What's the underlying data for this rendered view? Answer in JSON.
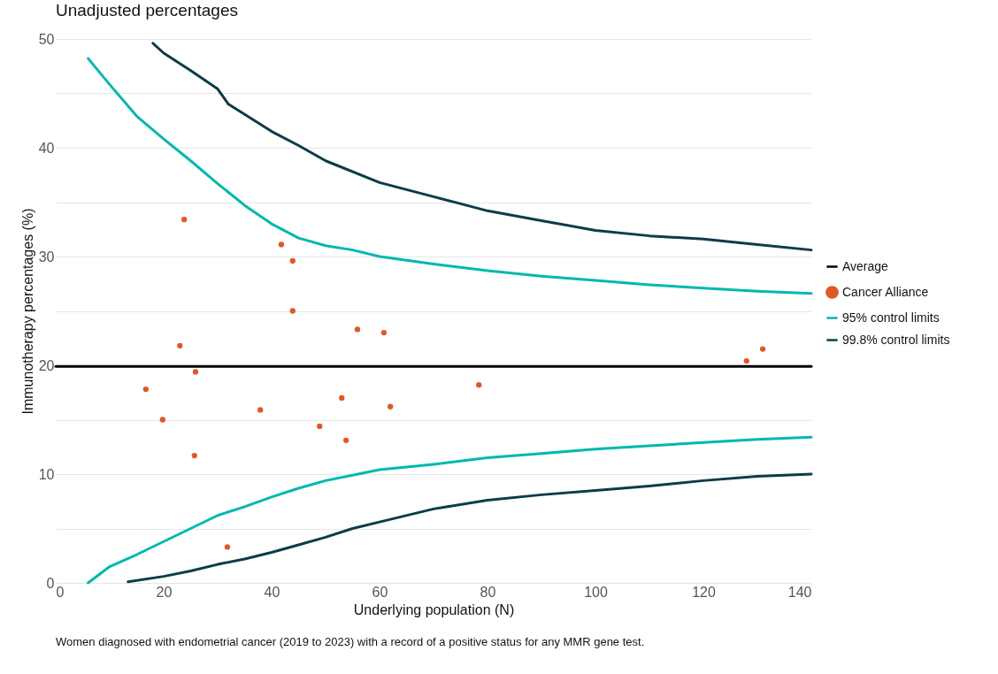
{
  "chart_data": {
    "type": "scatter",
    "title": "Unadjusted percentages",
    "xlabel": "Underlying population (N)",
    "ylabel": "Immunotherapy percentages (%)",
    "xlim": [
      0,
      140
    ],
    "xticks": [
      0,
      20,
      40,
      60,
      80,
      100,
      120,
      140
    ],
    "ylim": [
      0,
      50
    ],
    "yticks": [
      0,
      {
        "value": 5,
        "label": null
      },
      10,
      {
        "value": 15,
        "label": null
      },
      20,
      {
        "value": 25,
        "label": null
      },
      30,
      {
        "value": 35,
        "label": null
      },
      40,
      {
        "value": 45,
        "label": null
      },
      50
    ],
    "grid": "y",
    "legend": "right",
    "annotations": [
      "Women diagnosed with endometrial cancer (2019 to 2023) with a record of a positive status for any MMR gene test."
    ],
    "series": [
      {
        "name": "Average",
        "type": "line",
        "color": "#000000",
        "x": [
          0,
          140
        ],
        "values": [
          19.9,
          19.9
        ]
      },
      {
        "name": "Cancer Alliance",
        "color": "#e0582a",
        "x": [
          23.8,
          41.8,
          43.9,
          43.9,
          55.9,
          60.8,
          23.0,
          25.9,
          16.7,
          53.0,
          78.4,
          62.0,
          37.9,
          19.8,
          48.9,
          53.8,
          25.7,
          31.8,
          128.0,
          131.0
        ],
        "values": [
          33.4,
          31.1,
          29.6,
          25.0,
          23.3,
          23.0,
          21.8,
          19.4,
          17.8,
          17.0,
          18.2,
          16.2,
          15.9,
          15.0,
          14.4,
          13.1,
          11.7,
          3.3,
          20.4,
          21.5
        ]
      },
      {
        "name": "95% control limits",
        "type": "line",
        "color": "#00b8b0",
        "x": [
          6,
          10,
          15,
          20,
          25,
          30,
          35,
          40,
          45,
          50,
          55,
          60,
          70,
          80,
          90,
          100,
          110,
          120,
          130,
          140
        ],
        "values": [
          48.2,
          45.8,
          42.9,
          40.8,
          38.8,
          36.7,
          34.7,
          33.0,
          31.7,
          31.0,
          30.6,
          30.0,
          29.3,
          28.7,
          28.2,
          27.8,
          27.4,
          27.1,
          26.8,
          26.6
        ]
      },
      {
        "type": "line",
        "color": "#00b8b0",
        "x": [
          6,
          10,
          15,
          20,
          25,
          30,
          35,
          40,
          45,
          50,
          55,
          60,
          70,
          80,
          90,
          100,
          110,
          120,
          130,
          140
        ],
        "values": [
          0,
          1.5,
          2.6,
          3.8,
          5.0,
          6.2,
          7.0,
          7.9,
          8.7,
          9.4,
          9.9,
          10.4,
          10.9,
          11.5,
          11.9,
          12.3,
          12.6,
          12.9,
          13.2,
          13.4
        ]
      },
      {
        "name": "99.8% control limits",
        "type": "line",
        "color": "#0b3c49",
        "x": [
          18,
          20,
          25,
          30,
          32,
          40,
          45,
          50,
          60,
          70,
          80,
          90,
          100,
          110,
          120,
          130,
          140
        ],
        "values": [
          49.6,
          48.7,
          47.1,
          45.4,
          44.0,
          41.5,
          40.2,
          38.8,
          36.8,
          35.5,
          34.2,
          33.3,
          32.4,
          31.9,
          31.6,
          31.1,
          30.6
        ]
      },
      {
        "type": "line",
        "color": "#0b3c49",
        "x": [
          13.4,
          20,
          25,
          30,
          35,
          40,
          45,
          50,
          55,
          60,
          70,
          80,
          90,
          100,
          110,
          120,
          130,
          140
        ],
        "values": [
          0.1,
          0.6,
          1.1,
          1.7,
          2.2,
          2.8,
          3.5,
          4.2,
          5.0,
          5.6,
          6.8,
          7.6,
          8.1,
          8.5,
          8.9,
          9.4,
          9.8,
          10.0
        ]
      }
    ]
  }
}
